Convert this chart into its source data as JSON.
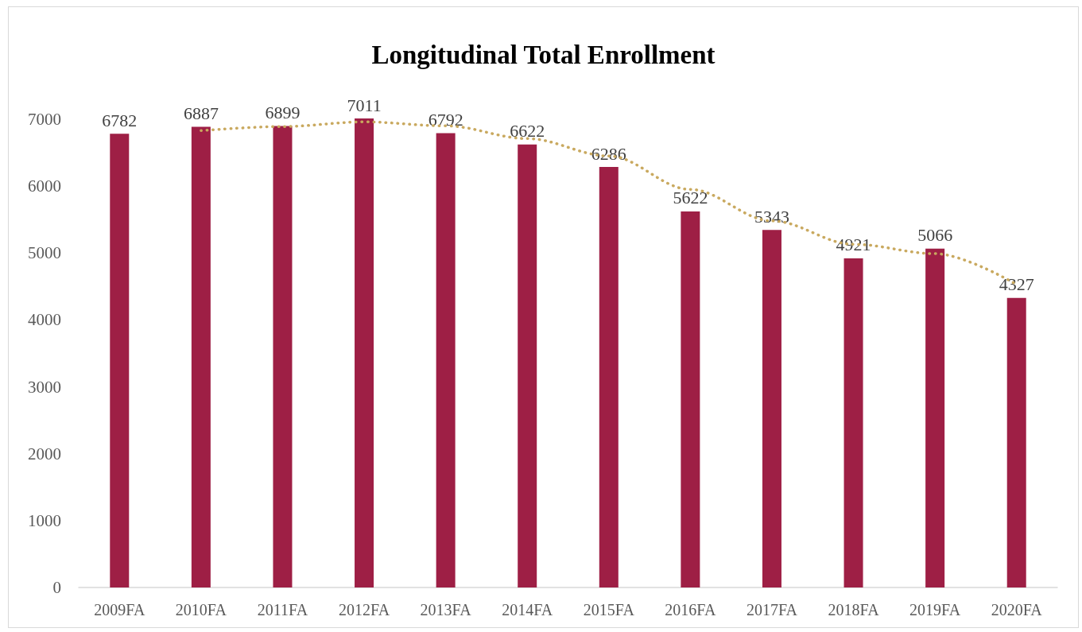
{
  "chart_data": {
    "type": "bar",
    "title": "Longitudinal Total Enrollment",
    "categories": [
      "2009FA",
      "2010FA",
      "2011FA",
      "2012FA",
      "2013FA",
      "2014FA",
      "2015FA",
      "2016FA",
      "2017FA",
      "2018FA",
      "2019FA",
      "2020FA"
    ],
    "series": [
      {
        "color": "#9e1f45",
        "values": [
          6782,
          6887,
          6899,
          7011,
          6792,
          6622,
          6286,
          5622,
          5343,
          4921,
          5066,
          4327
        ],
        "value_labels": [
          "6782",
          "6887",
          "6899",
          "7011",
          "6792",
          "6622",
          "6286",
          "5622",
          "5343",
          "4921",
          "5066",
          "4327"
        ]
      },
      {
        "type": "line",
        "color": "#c9a95f",
        "x": [
          "2010FA",
          "2011FA",
          "2012FA",
          "2013FA",
          "2014FA",
          "2015FA",
          "2016FA",
          "2017FA",
          "2018FA",
          "2019FA",
          "2020FA"
        ],
        "values": [
          6830,
          6890,
          6960,
          6900,
          6710,
          6450,
          5950,
          5480,
          5130,
          4990,
          4530
        ]
      }
    ],
    "ylim": [
      0,
      7011
    ],
    "yticks": [
      0,
      1000,
      2000,
      3000,
      4000,
      5000,
      6000,
      7000
    ],
    "grid": false,
    "marker": "none",
    "line_style": "dotted"
  }
}
